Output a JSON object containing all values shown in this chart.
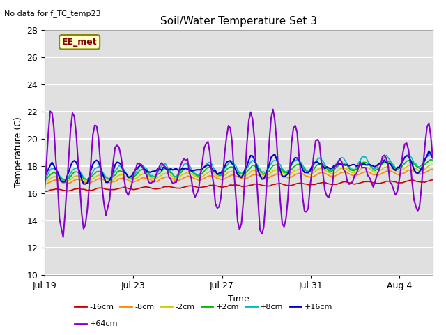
{
  "title": "Soil/Water Temperature Set 3",
  "subtitle": "No data for f_TC_temp23",
  "xlabel": "Time",
  "ylabel": "Temperature (C)",
  "ylim": [
    10,
    28
  ],
  "yticks": [
    10,
    12,
    14,
    16,
    18,
    20,
    22,
    24,
    26,
    28
  ],
  "xlim_days": [
    0,
    17.5
  ],
  "xtick_positions": [
    0,
    4,
    8,
    12,
    16
  ],
  "xtick_labels": [
    "Jul 19",
    "Jul 23",
    "Jul 27",
    "Jul 31",
    "Aug 4"
  ],
  "legend_label": "EE_met",
  "series_order": [
    "-16cm",
    "-8cm",
    "-2cm",
    "+2cm",
    "+8cm",
    "+16cm",
    "+64cm"
  ],
  "series": {
    "-16cm": {
      "color": "#cc0000",
      "base": 16.2,
      "amp": 0.08,
      "trend": 0.04,
      "phase": 1.8
    },
    "-8cm": {
      "color": "#ff8800",
      "base": 16.8,
      "amp": 0.15,
      "trend": 0.045,
      "phase": 1.5
    },
    "-2cm": {
      "color": "#cccc00",
      "base": 17.0,
      "amp": 0.2,
      "trend": 0.05,
      "phase": 1.3
    },
    "+2cm": {
      "color": "#00bb00",
      "base": 17.2,
      "amp": 0.3,
      "trend": 0.055,
      "phase": 1.1
    },
    "+8cm": {
      "color": "#00bbbb",
      "base": 17.35,
      "amp": 0.45,
      "trend": 0.06,
      "phase": 0.9
    },
    "+16cm": {
      "color": "#0000cc",
      "base": 17.5,
      "amp": 0.9,
      "trend": 0.04,
      "phase": 0.5
    },
    "+64cm": {
      "color": "#8800cc",
      "base": 17.5,
      "amp": 3.8,
      "trend": 0.0,
      "phase": 0.3
    }
  },
  "plot_bg_color": "#e0e0e0",
  "fig_bg_color": "#ffffff",
  "grid_color": "#ffffff",
  "legend_box_facecolor": "#ffffcc",
  "legend_box_edgecolor": "#888800",
  "ee_met_text_color": "#880000",
  "subtitle_fontsize": 8,
  "title_fontsize": 11,
  "axis_fontsize": 9,
  "tick_fontsize": 9
}
